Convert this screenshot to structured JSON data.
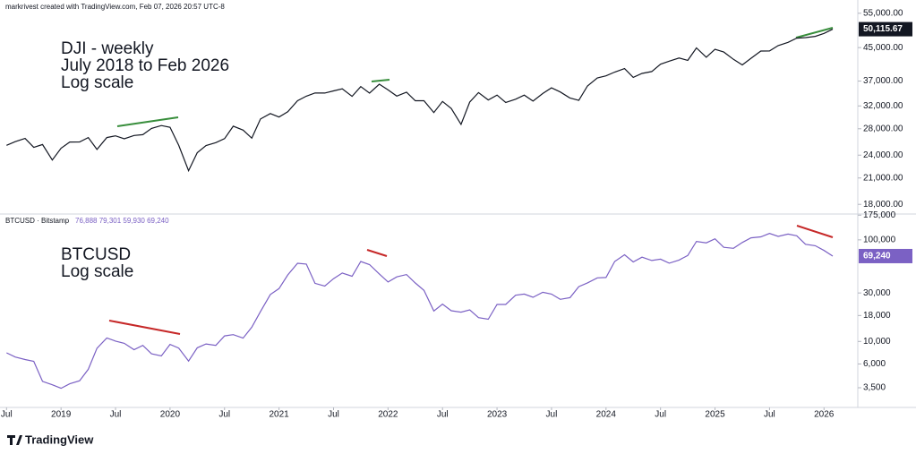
{
  "header": "markrivest created with TradingView.com, Feb 07, 2026 20:57 UTC-8",
  "footer": {
    "brand": "TradingView"
  },
  "chart_data": [
    {
      "type": "line",
      "log": true,
      "color": "#131722",
      "annotations": [
        "DJI - weekly",
        "July 2018 to Feb 2026",
        "Log scale"
      ],
      "last_value_label": "50,115.67",
      "xlim": [
        2018.44,
        2026.31
      ],
      "ylim": [
        17100,
        57000
      ],
      "yticks": [
        {
          "value": 55000,
          "label": "55,000.00"
        },
        {
          "value": 45000,
          "label": "45,000.00"
        },
        {
          "value": 37000,
          "label": "37,000.00"
        },
        {
          "value": 32000,
          "label": "32,000.00"
        },
        {
          "value": 28000,
          "label": "28,000.00"
        },
        {
          "value": 24000,
          "label": "24,000.00"
        },
        {
          "value": 21000,
          "label": "21,000.00"
        },
        {
          "value": 18000,
          "label": "18,000.00"
        }
      ],
      "x": [
        2018.5,
        2018.58,
        2018.67,
        2018.75,
        2018.83,
        2018.92,
        2019,
        2019.08,
        2019.17,
        2019.25,
        2019.33,
        2019.42,
        2019.5,
        2019.58,
        2019.67,
        2019.75,
        2019.83,
        2019.92,
        2020,
        2020.08,
        2020.17,
        2020.25,
        2020.33,
        2020.42,
        2020.5,
        2020.58,
        2020.67,
        2020.75,
        2020.83,
        2020.92,
        2021,
        2021.08,
        2021.17,
        2021.25,
        2021.33,
        2021.42,
        2021.5,
        2021.58,
        2021.67,
        2021.75,
        2021.83,
        2021.92,
        2022,
        2022.08,
        2022.17,
        2022.25,
        2022.33,
        2022.42,
        2022.5,
        2022.58,
        2022.67,
        2022.75,
        2022.83,
        2022.92,
        2023,
        2023.08,
        2023.17,
        2023.25,
        2023.33,
        2023.42,
        2023.5,
        2023.58,
        2023.67,
        2023.75,
        2023.83,
        2023.92,
        2024,
        2024.08,
        2024.17,
        2024.25,
        2024.33,
        2024.42,
        2024.5,
        2024.58,
        2024.67,
        2024.75,
        2024.83,
        2024.92,
        2025,
        2025.08,
        2025.17,
        2025.25,
        2025.33,
        2025.42,
        2025.5,
        2025.58,
        2025.67,
        2025.75,
        2025.83,
        2025.92,
        2026,
        2026.08
      ],
      "values": [
        25415,
        25965,
        26458,
        25116,
        25538,
        23327,
        24999,
        25916,
        25929,
        26593,
        24815,
        26600,
        26864,
        26403,
        26917,
        27046,
        28051,
        28538,
        28256,
        25409,
        21917,
        24346,
        25383,
        25813,
        26428,
        28430,
        27782,
        26502,
        29638,
        30606,
        29983,
        30932,
        32981,
        33875,
        34529,
        34503,
        34935,
        35361,
        33844,
        35820,
        34484,
        36338,
        35132,
        33893,
        34678,
        32977,
        32990,
        30775,
        32845,
        31510,
        28726,
        32733,
        34590,
        33147,
        34086,
        32657,
        33274,
        34098,
        32908,
        34408,
        35560,
        34722,
        33508,
        33053,
        35951,
        37690,
        38150,
        38996,
        39807,
        37816,
        38686,
        39119,
        40843,
        41563,
        42330,
        41763,
        44911,
        42544,
        44545,
        43841,
        42002,
        40669,
        42270,
        44095,
        44131,
        45545,
        46398,
        47563,
        47716,
        48063,
        48892,
        50115.67
      ]
    },
    {
      "type": "line",
      "log": true,
      "color": "#7b61c4",
      "annotations": [
        "BTCUSD",
        "Log scale"
      ],
      "legend_title": "BTCUSD · Bitstamp",
      "legend_values": "76,888 79,301 59,930 69,240",
      "last_value_label": "69,240",
      "xlim": [
        2018.44,
        2026.31
      ],
      "ylim": [
        2240,
        176000
      ],
      "yticks": [
        {
          "value": 175000,
          "label": "175,000"
        },
        {
          "value": 100000,
          "label": "100,000"
        },
        {
          "value": 30000,
          "label": "30,000"
        },
        {
          "value": 18000,
          "label": "18,000"
        },
        {
          "value": 10000,
          "label": "10,000"
        },
        {
          "value": 6000,
          "label": "6,000"
        },
        {
          "value": 3500,
          "label": "3,500"
        }
      ],
      "xticks": [
        {
          "value": 2018.5,
          "label": "Jul"
        },
        2019,
        {
          "value": 2019.5,
          "label": "Jul"
        },
        2020,
        {
          "value": 2020.5,
          "label": "Jul"
        },
        2021,
        {
          "value": 2021.5,
          "label": "Jul"
        },
        2022,
        {
          "value": 2022.5,
          "label": "Jul"
        },
        2023,
        {
          "value": 2023.5,
          "label": "Jul"
        },
        2024,
        {
          "value": 2024.5,
          "label": "Jul"
        },
        2025,
        {
          "value": 2025.5,
          "label": "Jul"
        },
        2026
      ],
      "x": [
        2018.5,
        2018.58,
        2018.67,
        2018.75,
        2018.83,
        2018.92,
        2019,
        2019.08,
        2019.17,
        2019.25,
        2019.33,
        2019.42,
        2019.5,
        2019.58,
        2019.67,
        2019.75,
        2019.83,
        2019.92,
        2020,
        2020.08,
        2020.17,
        2020.25,
        2020.33,
        2020.42,
        2020.5,
        2020.58,
        2020.67,
        2020.75,
        2020.83,
        2020.92,
        2021,
        2021.08,
        2021.17,
        2021.25,
        2021.33,
        2021.42,
        2021.5,
        2021.58,
        2021.67,
        2021.75,
        2021.83,
        2021.92,
        2022,
        2022.08,
        2022.17,
        2022.25,
        2022.33,
        2022.42,
        2022.5,
        2022.58,
        2022.67,
        2022.75,
        2022.83,
        2022.92,
        2023,
        2023.08,
        2023.17,
        2023.25,
        2023.33,
        2023.42,
        2023.5,
        2023.58,
        2023.67,
        2023.75,
        2023.83,
        2023.92,
        2024,
        2024.08,
        2024.17,
        2024.25,
        2024.33,
        2024.42,
        2024.5,
        2024.58,
        2024.67,
        2024.75,
        2024.83,
        2024.92,
        2025,
        2025.08,
        2025.17,
        2025.25,
        2025.33,
        2025.42,
        2025.5,
        2025.58,
        2025.67,
        2025.75,
        2025.83,
        2025.92,
        2026,
        2026.08
      ],
      "values": [
        7730,
        7030,
        6630,
        6370,
        4040,
        3740,
        3460,
        3830,
        4100,
        5320,
        8570,
        10820,
        10080,
        9590,
        8290,
        9150,
        7560,
        7190,
        9350,
        8600,
        6410,
        8650,
        9450,
        9140,
        11350,
        11660,
        10780,
        13800,
        19700,
        28990,
        33110,
        45160,
        58800,
        57720,
        37300,
        35040,
        41460,
        47100,
        43790,
        61300,
        57000,
        46200,
        38480,
        43190,
        45540,
        37640,
        31790,
        19940,
        23310,
        20050,
        19430,
        20490,
        17170,
        16540,
        23130,
        23140,
        28480,
        29250,
        27220,
        30470,
        29230,
        25940,
        26960,
        34640,
        37720,
        42270,
        42580,
        61200,
        71290,
        60640,
        67490,
        62680,
        64620,
        58970,
        63330,
        70220,
        96450,
        93430,
        102400,
        84350,
        82550,
        94200,
        104600,
        107100,
        115700,
        108200,
        114000,
        109600,
        90400,
        87500,
        78600,
        69240
      ]
    }
  ]
}
